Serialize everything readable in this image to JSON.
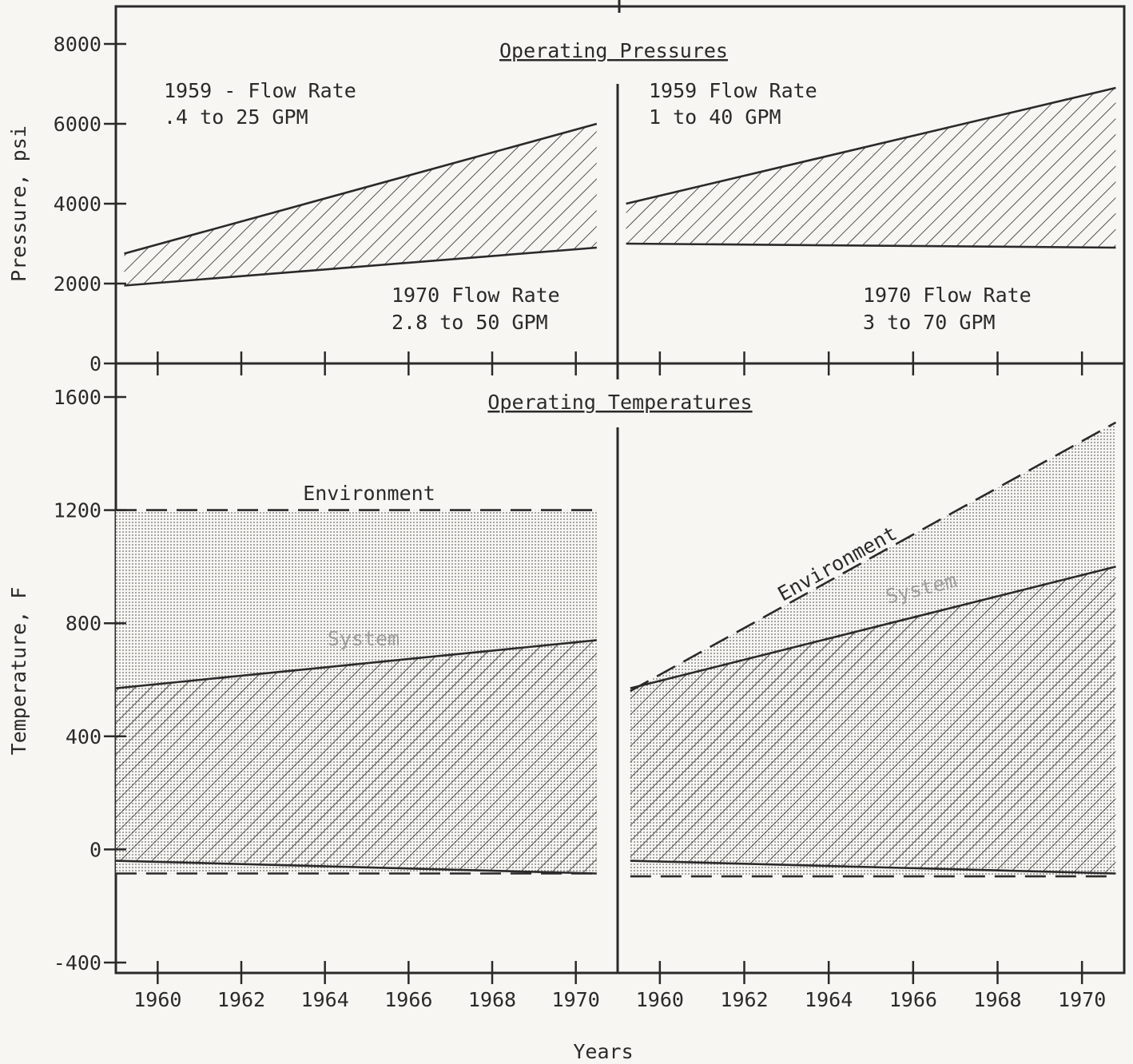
{
  "chart_data": [
    {
      "type": "area",
      "title": "Operating Pressures",
      "ylabel": "Pressure, psi",
      "yticks": [
        0,
        2000,
        4000,
        6000,
        8000
      ],
      "ylim": [
        0,
        8000
      ],
      "xlim": [
        1959,
        1971
      ],
      "panels": [
        {
          "region": {
            "upper": [
              [
                1959.2,
                2750
              ],
              [
                1970.5,
                6000
              ]
            ],
            "lower": [
              [
                1959.2,
                1950
              ],
              [
                1970.5,
                2900
              ]
            ]
          },
          "labels": [
            "1959 - Flow Rate",
            ".4 to 25 GPM",
            "1970 Flow Rate",
            "2.8 to 50 GPM"
          ]
        },
        {
          "region": {
            "upper": [
              [
                1959.2,
                4000
              ],
              [
                1970.8,
                6900
              ]
            ],
            "lower": [
              [
                1959.2,
                3000
              ],
              [
                1970.8,
                2900
              ]
            ]
          },
          "labels": [
            "1959 Flow Rate",
            "1 to 40 GPM",
            "1970 Flow Rate",
            "3 to 70 GPM"
          ]
        }
      ]
    },
    {
      "type": "area",
      "title": "Operating Temperatures",
      "ylabel": "Temperature, F",
      "yticks": [
        -400,
        0,
        400,
        800,
        1200,
        1600
      ],
      "ylim": [
        -400,
        1600
      ],
      "xlim": [
        1959,
        1971
      ],
      "xticks": [
        1960,
        1962,
        1964,
        1966,
        1968,
        1970
      ],
      "xlabel": "Years",
      "panels": [
        {
          "environment": {
            "upper": [
              [
                1959,
                1200
              ],
              [
                1970.5,
                1200
              ]
            ],
            "lower": [
              [
                1959,
                -85
              ],
              [
                1970.5,
                -85
              ]
            ]
          },
          "system": {
            "upper": [
              [
                1959,
                570
              ],
              [
                1970.5,
                740
              ]
            ],
            "lower": [
              [
                1959,
                -40
              ],
              [
                1970.5,
                -85
              ]
            ]
          },
          "labels": [
            "Environment",
            "System"
          ]
        },
        {
          "environment": {
            "upper": [
              [
                1959.3,
                560
              ],
              [
                1970.8,
                1510
              ]
            ],
            "lower": [
              [
                1959.3,
                -95
              ],
              [
                1970.8,
                -95
              ]
            ]
          },
          "system": {
            "upper": [
              [
                1959.3,
                570
              ],
              [
                1970.8,
                1000
              ]
            ],
            "lower": [
              [
                1959.3,
                -40
              ],
              [
                1970.8,
                -85
              ]
            ]
          },
          "labels": [
            "Environment",
            "System"
          ]
        }
      ]
    }
  ]
}
